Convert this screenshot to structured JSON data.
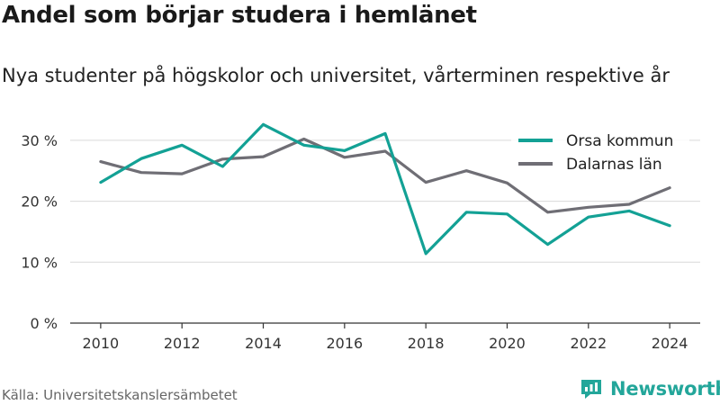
{
  "title": "Andel som börjar studera i hemlänet",
  "subtitle": "Nya studenter på högskolor och universitet, vårterminen respektive år",
  "source": "Källa: Universitetskanslersämbetet",
  "brand": "Newsworthy",
  "colors": {
    "orsa": "#13a195",
    "dalarna": "#6f6e75",
    "brand": "#23a69a",
    "grid": "#d9d9d9"
  },
  "chart_data": {
    "type": "line",
    "x": [
      2010,
      2011,
      2012,
      2013,
      2014,
      2015,
      2016,
      2017,
      2018,
      2019,
      2020,
      2021,
      2022,
      2023,
      2024
    ],
    "series": [
      {
        "name": "Orsa kommun",
        "color": "#13a195",
        "values": [
          23.1,
          27.0,
          29.2,
          25.7,
          32.6,
          29.2,
          28.3,
          31.1,
          11.4,
          18.2,
          17.9,
          12.9,
          17.4,
          18.4,
          16.0
        ]
      },
      {
        "name": "Dalarnas län",
        "color": "#6f6e75",
        "values": [
          26.5,
          24.7,
          24.5,
          26.9,
          27.3,
          30.2,
          27.2,
          28.2,
          23.1,
          25.0,
          23.0,
          18.2,
          19.0,
          19.5,
          22.2
        ]
      }
    ],
    "xticks": [
      "2010",
      "2012",
      "2014",
      "2016",
      "2018",
      "2020",
      "2022",
      "2024"
    ],
    "yticks": [
      "0 %",
      "10 %",
      "20 %",
      "30 %"
    ],
    "ylim": [
      0,
      35
    ],
    "xlim": [
      2009.25,
      2024.75
    ],
    "grid": true,
    "legend": "top-right"
  }
}
